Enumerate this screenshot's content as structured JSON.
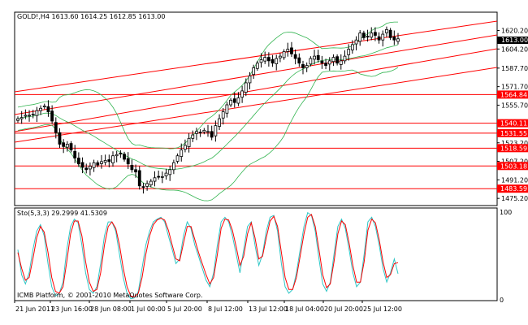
{
  "chart_data": [
    {
      "type": "candlestick",
      "title": "GOLD!,H4  1613.60  1614.25  1612.85  1613.00",
      "price_labels": [
        "1620.20",
        "1604.20",
        "1587.70",
        "1571.70",
        "1555.70",
        "1539.70",
        "1523.20",
        "1507.20",
        "1491.20",
        "1475.20"
      ],
      "current_price_label": "1613.00",
      "time_labels": [
        "21 Jun 2011",
        "23 Jun 16:00",
        "28 Jun 08:00",
        "1 Jul 00:00",
        "5 Jul 20:00",
        "8 Jul 12:00",
        "13 Jul 12:00",
        "18 Jul 04:00",
        "20 Jul 20:00",
        "25 Jul 12:00"
      ],
      "ylim": [
        1469,
        1636
      ],
      "close_series": [
        1544,
        1545,
        1547,
        1547,
        1548,
        1551,
        1553,
        1555,
        1550,
        1542,
        1532,
        1522,
        1520,
        1522,
        1517,
        1510,
        1505,
        1502,
        1500,
        1503,
        1506,
        1504,
        1507,
        1508,
        1507,
        1512,
        1513,
        1514,
        1509,
        1505,
        1500,
        1498,
        1486,
        1485,
        1488,
        1490,
        1493,
        1494,
        1494,
        1497,
        1500,
        1506,
        1512,
        1517,
        1521,
        1527,
        1530,
        1533,
        1532,
        1534,
        1533,
        1528,
        1538,
        1544,
        1550,
        1556,
        1560,
        1558,
        1562,
        1568,
        1575,
        1581,
        1588,
        1592,
        1595,
        1597,
        1594,
        1592,
        1596,
        1598,
        1602,
        1604,
        1600,
        1596,
        1592,
        1588,
        1590,
        1596,
        1598,
        1595,
        1592,
        1590,
        1594,
        1597,
        1592,
        1594,
        1598,
        1604,
        1608,
        1612,
        1618,
        1614,
        1615,
        1618,
        1616,
        1612,
        1617,
        1621,
        1614,
        1612,
        1613
      ],
      "levels": [
        {
          "label": "1564.84",
          "price": 1564.84
        },
        {
          "label": "1540.11",
          "price": 1540.11
        },
        {
          "label": "1531.55",
          "price": 1531.55
        },
        {
          "label": "1518.59",
          "price": 1518.59
        },
        {
          "label": "1503.18",
          "price": 1503.18
        },
        {
          "label": "1483.59",
          "price": 1483.59
        }
      ],
      "colors": {
        "bull": "#ffffff",
        "bear": "#000000",
        "bands": "#32b450",
        "levels": "#ff0000"
      }
    },
    {
      "type": "line",
      "title": "Sto(5,3,3) 29.2999 41.5309",
      "ylim": [
        0,
        100
      ],
      "y_labels": [
        "100",
        "0"
      ],
      "series": [
        {
          "color": "#2fc6c6",
          "values": [
            55,
            28,
            18,
            30,
            55,
            75,
            82,
            70,
            40,
            15,
            5,
            8,
            20,
            55,
            80,
            88,
            84,
            60,
            30,
            12,
            8,
            15,
            40,
            70,
            85,
            85,
            75,
            50,
            25,
            8,
            2,
            3,
            10,
            35,
            60,
            75,
            85,
            88,
            90,
            85,
            70,
            55,
            40,
            45,
            70,
            85,
            78,
            60,
            48,
            35,
            22,
            15,
            30,
            60,
            85,
            90,
            85,
            70,
            50,
            30,
            55,
            80,
            85,
            60,
            38,
            50,
            75,
            90,
            92,
            75,
            40,
            15,
            8,
            12,
            30,
            55,
            80,
            95,
            92,
            75,
            45,
            18,
            10,
            20,
            50,
            80,
            88,
            78,
            55,
            30,
            15,
            20,
            50,
            85,
            90,
            80,
            60,
            35,
            20,
            30,
            45,
            29
          ]
        },
        {
          "color": "#ff0000",
          "values": [
            52,
            35,
            22,
            25,
            45,
            68,
            80,
            74,
            52,
            25,
            10,
            8,
            15,
            42,
            72,
            86,
            86,
            70,
            42,
            20,
            10,
            12,
            30,
            60,
            80,
            85,
            78,
            60,
            35,
            15,
            5,
            4,
            8,
            25,
            50,
            70,
            82,
            87,
            89,
            87,
            76,
            60,
            45,
            43,
            62,
            80,
            80,
            66,
            52,
            40,
            28,
            18,
            25,
            50,
            78,
            88,
            87,
            76,
            58,
            38,
            48,
            72,
            84,
            68,
            45,
            48,
            68,
            86,
            91,
            80,
            52,
            25,
            12,
            12,
            25,
            48,
            72,
            90,
            93,
            80,
            55,
            28,
            14,
            18,
            42,
            72,
            86,
            82,
            62,
            38,
            20,
            20,
            42,
            76,
            88,
            84,
            66,
            42,
            25,
            28,
            40,
            41
          ]
        }
      ]
    }
  ],
  "platform_note": "ICMB Platform, © 2001-2010 MetaQuotes Software Corp."
}
